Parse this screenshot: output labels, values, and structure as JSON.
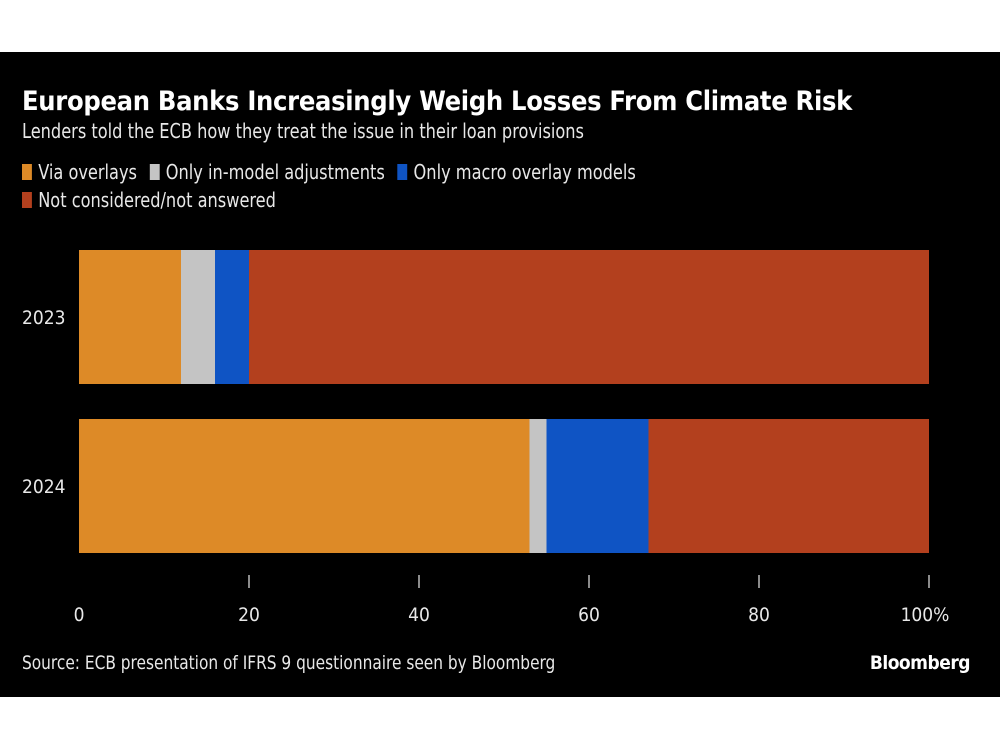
{
  "chart_data": {
    "type": "bar",
    "orientation": "horizontal",
    "stacked": true,
    "title": "European Banks Increasingly Weigh Losses From Climate Risk",
    "subtitle": "Lenders told the ECB how they treat the issue in their loan provisions",
    "categories": [
      "2023",
      "2024"
    ],
    "series": [
      {
        "name": "Via overlays",
        "color": "#dd8a27",
        "values": [
          12,
          53
        ]
      },
      {
        "name": "Only in-model adjustments",
        "color": "#c4c4c4",
        "values": [
          4,
          2
        ]
      },
      {
        "name": "Only macro overlay models",
        "color": "#0f54c4",
        "values": [
          4,
          12
        ]
      },
      {
        "name": "Not considered/not answered",
        "color": "#b3401e",
        "values": [
          80,
          33
        ]
      }
    ],
    "xlim": [
      0,
      100
    ],
    "xticks": [
      0,
      20,
      40,
      60,
      80,
      100
    ],
    "xtick_labels": [
      "0",
      "20",
      "40",
      "60",
      "80",
      "100%"
    ],
    "legend_placement": "top-left",
    "grid": false,
    "background": "#000000"
  },
  "footer": {
    "source": "Source: ECB presentation of IFRS 9 questionnaire seen by Bloomberg",
    "logo": "Bloomberg"
  }
}
